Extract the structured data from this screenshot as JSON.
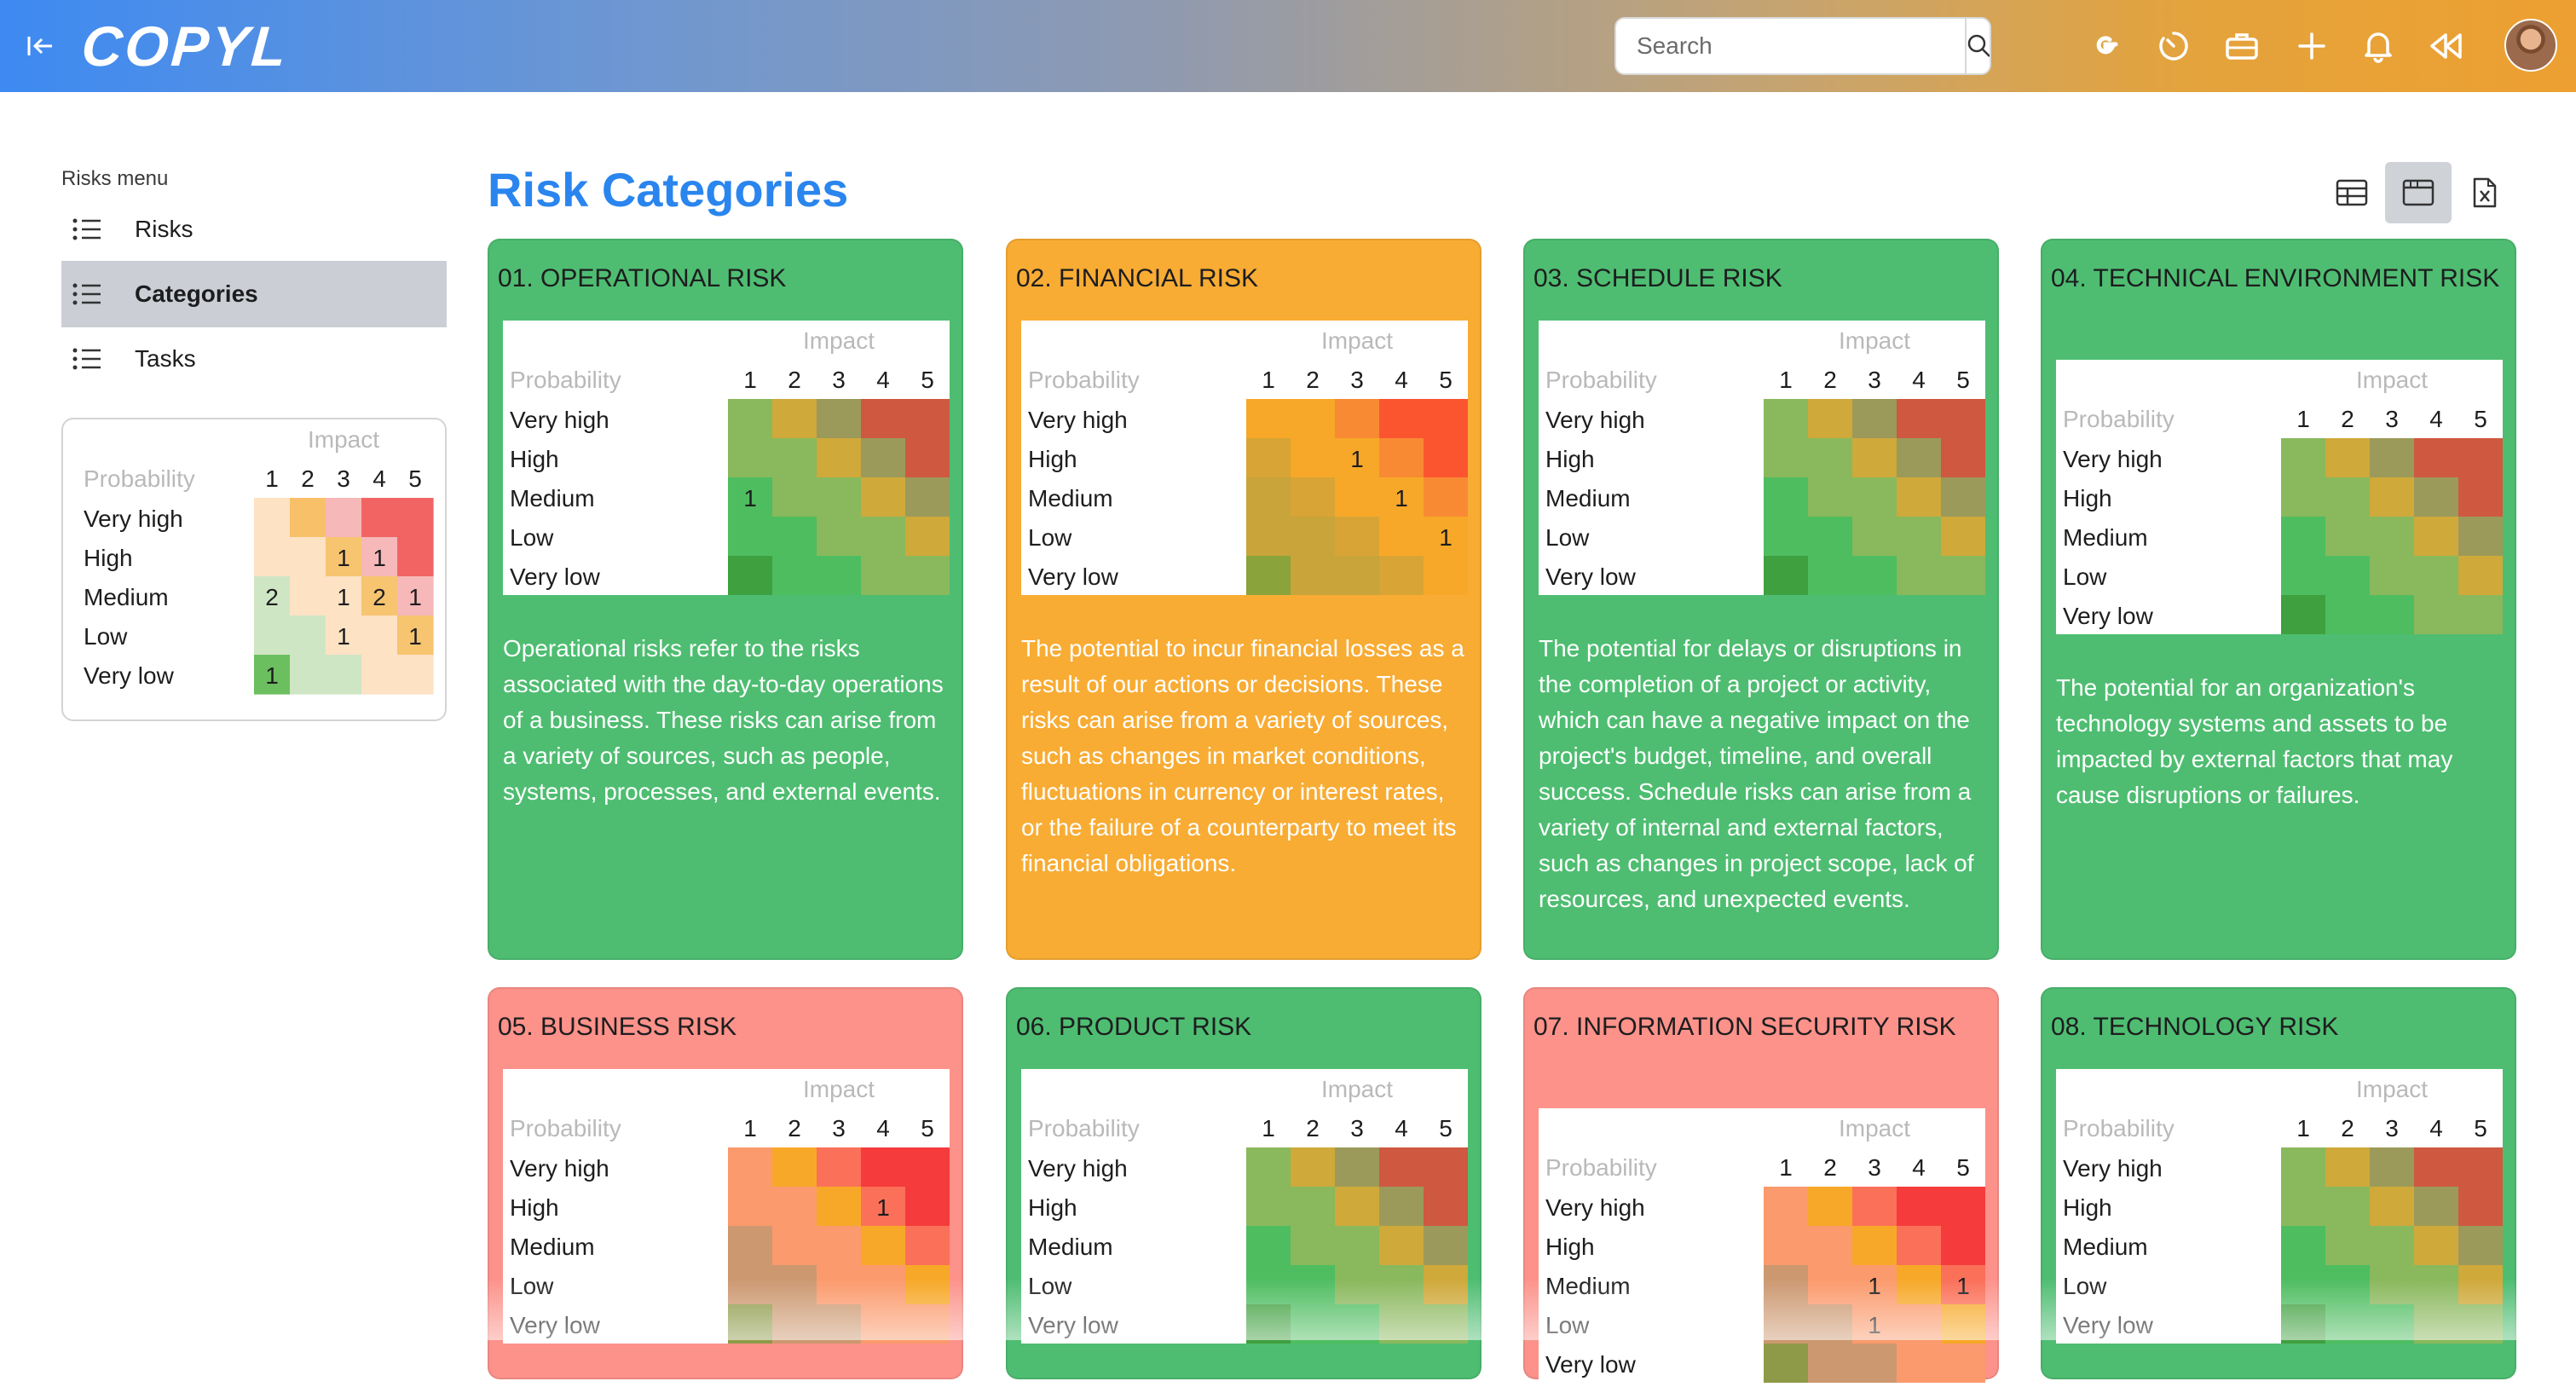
{
  "header": {
    "logo": "COPYL",
    "search_placeholder": "Search",
    "icons": [
      "collapse-sidebar-icon",
      "search-icon",
      "google-icon",
      "timer-icon",
      "toolbox-icon",
      "plus-icon",
      "bell-icon",
      "rewind-icon"
    ]
  },
  "sidebar": {
    "title": "Risks menu",
    "items": [
      {
        "label": "Risks",
        "active": false
      },
      {
        "label": "Categories",
        "active": true
      },
      {
        "label": "Tasks",
        "active": false
      }
    ],
    "legend": {
      "impact_label": "Impact",
      "probability_label": "Probability",
      "columns": [
        "1",
        "2",
        "3",
        "4",
        "5"
      ],
      "rows": [
        "Very high",
        "High",
        "Medium",
        "Low",
        "Very low"
      ],
      "colors": [
        [
          "#fde2c4",
          "#f9c06a",
          "#f6b8b8",
          "#f26464",
          "#f26464"
        ],
        [
          "#fde2c4",
          "#fde2c4",
          "#f7c470",
          "#f6b8b8",
          "#f26464"
        ],
        [
          "#cfe6c5",
          "#fde2c4",
          "#fde2c4",
          "#f7c470",
          "#f6b8b8"
        ],
        [
          "#cfe6c5",
          "#cfe6c5",
          "#fde2c4",
          "#fde2c4",
          "#f7c470"
        ],
        [
          "#6cbf5f",
          "#cfe6c5",
          "#cfe6c5",
          "#fde2c4",
          "#fde2c4"
        ]
      ],
      "counts": [
        [
          "",
          "",
          "",
          "",
          ""
        ],
        [
          "",
          "",
          "1",
          "1",
          ""
        ],
        [
          "2",
          "",
          "1",
          "2",
          "1"
        ],
        [
          "",
          "",
          "1",
          "",
          "1"
        ],
        [
          "1",
          "",
          "",
          "",
          ""
        ]
      ]
    }
  },
  "main": {
    "title": "Risk Categories",
    "view_buttons": [
      {
        "icon": "table-view-icon",
        "active": false
      },
      {
        "icon": "card-view-icon",
        "active": true
      },
      {
        "icon": "excel-export-icon",
        "active": false
      }
    ],
    "matrix_labels": {
      "impact": "Impact",
      "probability": "Probability",
      "columns": [
        "1",
        "2",
        "3",
        "4",
        "5"
      ],
      "rows": [
        "Very high",
        "High",
        "Medium",
        "Low",
        "Very low"
      ]
    },
    "cards": [
      {
        "title": "01. OPERATIONAL RISK",
        "bg": "#4ebd71",
        "description": "Operational risks refer to the risks associated with the day-to-day operations of a business. These risks can arise from a variety of sources, such as people, systems, processes, and external events.",
        "colors": [
          [
            "#8ab85c",
            "#cfa93a",
            "#9b9a5a",
            "#cf5840",
            "#cf5840"
          ],
          [
            "#8ab85c",
            "#8ab85c",
            "#cfa93a",
            "#9b9a5a",
            "#cf5840"
          ],
          [
            "#4ebd60",
            "#8ab85c",
            "#8ab85c",
            "#cfa93a",
            "#9b9a5a"
          ],
          [
            "#4ebd60",
            "#4ebd60",
            "#8ab85c",
            "#8ab85c",
            "#cfa93a"
          ],
          [
            "#3fa040",
            "#4ebd60",
            "#4ebd60",
            "#8ab85c",
            "#8ab85c"
          ]
        ],
        "counts": [
          [
            "",
            "",
            "",
            "",
            ""
          ],
          [
            "",
            "",
            "",
            "",
            ""
          ],
          [
            "1",
            "",
            "",
            "",
            ""
          ],
          [
            "",
            "",
            "",
            "",
            ""
          ],
          [
            "",
            "",
            "",
            "",
            ""
          ]
        ]
      },
      {
        "title": "02. FINANCIAL RISK",
        "bg": "#f8ac34",
        "description": "The potential to incur financial losses as a result of our actions or decisions. These risks can arise from a variety of sources, such as changes in market conditions, fluctuations in currency or interest rates, or the failure of a counterparty to meet its financial obligations.",
        "colors": [
          [
            "#f7a828",
            "#f7a828",
            "#f98a34",
            "#fb5530",
            "#fb5530"
          ],
          [
            "#d8a436",
            "#f7a828",
            "#f7a828",
            "#f98a34",
            "#fb5530"
          ],
          [
            "#c8a43a",
            "#d8a436",
            "#f7a828",
            "#f7a828",
            "#f98a34"
          ],
          [
            "#c8a43a",
            "#c8a43a",
            "#d8a436",
            "#f7a828",
            "#f7a828"
          ],
          [
            "#8aa33a",
            "#c8a43a",
            "#c8a43a",
            "#d8a436",
            "#f7a828"
          ]
        ],
        "counts": [
          [
            "",
            "",
            "",
            "",
            ""
          ],
          [
            "",
            "",
            "1",
            "",
            ""
          ],
          [
            "",
            "",
            "",
            "1",
            ""
          ],
          [
            "",
            "",
            "",
            "",
            "1"
          ],
          [
            "",
            "",
            "",
            "",
            ""
          ]
        ]
      },
      {
        "title": "03. SCHEDULE RISK",
        "bg": "#4ebd71",
        "description": "The potential for delays or disruptions in the completion of a project or activity, which can have a negative impact on the project's budget, timeline, and overall success. Schedule risks can arise from a variety of internal and external factors, such as changes in project scope, lack of resources, and unexpected events.",
        "colors": [
          [
            "#8ab85c",
            "#cfa93a",
            "#9b9a5a",
            "#cf5840",
            "#cf5840"
          ],
          [
            "#8ab85c",
            "#8ab85c",
            "#cfa93a",
            "#9b9a5a",
            "#cf5840"
          ],
          [
            "#4ebd60",
            "#8ab85c",
            "#8ab85c",
            "#cfa93a",
            "#9b9a5a"
          ],
          [
            "#4ebd60",
            "#4ebd60",
            "#8ab85c",
            "#8ab85c",
            "#cfa93a"
          ],
          [
            "#3fa040",
            "#4ebd60",
            "#4ebd60",
            "#8ab85c",
            "#8ab85c"
          ]
        ],
        "counts": [
          [
            "",
            "",
            "",
            "",
            ""
          ],
          [
            "",
            "",
            "",
            "",
            ""
          ],
          [
            "",
            "",
            "",
            "",
            ""
          ],
          [
            "",
            "",
            "",
            "",
            ""
          ],
          [
            "",
            "",
            "",
            "",
            ""
          ]
        ]
      },
      {
        "title": "04. TECHNICAL ENVIRONMENT RISK",
        "bg": "#4ebd71",
        "description": "The potential for an organization's technology systems and assets to be impacted by external factors that may cause disruptions or failures.",
        "colors": [
          [
            "#8ab85c",
            "#cfa93a",
            "#9b9a5a",
            "#cf5840",
            "#cf5840"
          ],
          [
            "#8ab85c",
            "#8ab85c",
            "#cfa93a",
            "#9b9a5a",
            "#cf5840"
          ],
          [
            "#4ebd60",
            "#8ab85c",
            "#8ab85c",
            "#cfa93a",
            "#9b9a5a"
          ],
          [
            "#4ebd60",
            "#4ebd60",
            "#8ab85c",
            "#8ab85c",
            "#cfa93a"
          ],
          [
            "#3fa040",
            "#4ebd60",
            "#4ebd60",
            "#8ab85c",
            "#8ab85c"
          ]
        ],
        "counts": [
          [
            "",
            "",
            "",
            "",
            ""
          ],
          [
            "",
            "",
            "",
            "",
            ""
          ],
          [
            "",
            "",
            "",
            "",
            ""
          ],
          [
            "",
            "",
            "",
            "",
            ""
          ],
          [
            "",
            "",
            "",
            "",
            ""
          ]
        ]
      },
      {
        "title": "05. BUSINESS RISK",
        "bg": "#fc928a",
        "description": "",
        "colors": [
          [
            "#fb9a6c",
            "#f7a828",
            "#fb7058",
            "#f53b3b",
            "#f53b3b"
          ],
          [
            "#fb9a6c",
            "#fb9a6c",
            "#f7a828",
            "#fb7058",
            "#f53b3b"
          ],
          [
            "#cc9870",
            "#fb9a6c",
            "#fb9a6c",
            "#f7a828",
            "#fb7058"
          ],
          [
            "#cc9870",
            "#cc9870",
            "#fb9a6c",
            "#fb9a6c",
            "#f7a828"
          ],
          [
            "#8e9a48",
            "#cc9870",
            "#cc9870",
            "#fb9a6c",
            "#fb9a6c"
          ]
        ],
        "counts": [
          [
            "",
            "",
            "",
            "",
            ""
          ],
          [
            "",
            "",
            "",
            "1",
            ""
          ],
          [
            "",
            "",
            "",
            "",
            ""
          ],
          [
            "",
            "",
            "",
            "",
            ""
          ],
          [
            "",
            "",
            "",
            "",
            ""
          ]
        ]
      },
      {
        "title": "06. PRODUCT RISK",
        "bg": "#4ebd71",
        "description": "",
        "colors": [
          [
            "#8ab85c",
            "#cfa93a",
            "#9b9a5a",
            "#cf5840",
            "#cf5840"
          ],
          [
            "#8ab85c",
            "#8ab85c",
            "#cfa93a",
            "#9b9a5a",
            "#cf5840"
          ],
          [
            "#4ebd60",
            "#8ab85c",
            "#8ab85c",
            "#cfa93a",
            "#9b9a5a"
          ],
          [
            "#4ebd60",
            "#4ebd60",
            "#8ab85c",
            "#8ab85c",
            "#cfa93a"
          ],
          [
            "#3fa040",
            "#4ebd60",
            "#4ebd60",
            "#8ab85c",
            "#8ab85c"
          ]
        ],
        "counts": [
          [
            "",
            "",
            "",
            "",
            ""
          ],
          [
            "",
            "",
            "",
            "",
            ""
          ],
          [
            "",
            "",
            "",
            "",
            ""
          ],
          [
            "",
            "",
            "",
            "",
            ""
          ],
          [
            "",
            "",
            "",
            "",
            ""
          ]
        ]
      },
      {
        "title": "07. INFORMATION SECURITY RISK",
        "bg": "#fc928a",
        "description": "",
        "colors": [
          [
            "#fb9a6c",
            "#f7a828",
            "#fb7058",
            "#f53b3b",
            "#f53b3b"
          ],
          [
            "#fb9a6c",
            "#fb9a6c",
            "#f7a828",
            "#fb7058",
            "#f53b3b"
          ],
          [
            "#cc9870",
            "#fb9a6c",
            "#fb9a6c",
            "#f7a828",
            "#fb7058"
          ],
          [
            "#cc9870",
            "#cc9870",
            "#fb9a6c",
            "#fb9a6c",
            "#f7a828"
          ],
          [
            "#8e9a48",
            "#cc9870",
            "#cc9870",
            "#fb9a6c",
            "#fb9a6c"
          ]
        ],
        "counts": [
          [
            "",
            "",
            "",
            "",
            ""
          ],
          [
            "",
            "",
            "",
            "",
            ""
          ],
          [
            "",
            "",
            "1",
            "",
            "1"
          ],
          [
            "",
            "",
            "1",
            "",
            ""
          ],
          [
            "",
            "",
            "",
            "",
            ""
          ]
        ]
      },
      {
        "title": "08. TECHNOLOGY RISK",
        "bg": "#4ebd71",
        "description": "",
        "colors": [
          [
            "#8ab85c",
            "#cfa93a",
            "#9b9a5a",
            "#cf5840",
            "#cf5840"
          ],
          [
            "#8ab85c",
            "#8ab85c",
            "#cfa93a",
            "#9b9a5a",
            "#cf5840"
          ],
          [
            "#4ebd60",
            "#8ab85c",
            "#8ab85c",
            "#cfa93a",
            "#9b9a5a"
          ],
          [
            "#4ebd60",
            "#4ebd60",
            "#8ab85c",
            "#8ab85c",
            "#cfa93a"
          ],
          [
            "#3fa040",
            "#4ebd60",
            "#4ebd60",
            "#8ab85c",
            "#8ab85c"
          ]
        ],
        "counts": [
          [
            "",
            "",
            "",
            "",
            ""
          ],
          [
            "",
            "",
            "",
            "",
            ""
          ],
          [
            "",
            "",
            "",
            "",
            ""
          ],
          [
            "",
            "",
            "",
            "",
            ""
          ],
          [
            "",
            "",
            "",
            "",
            ""
          ]
        ]
      }
    ]
  }
}
